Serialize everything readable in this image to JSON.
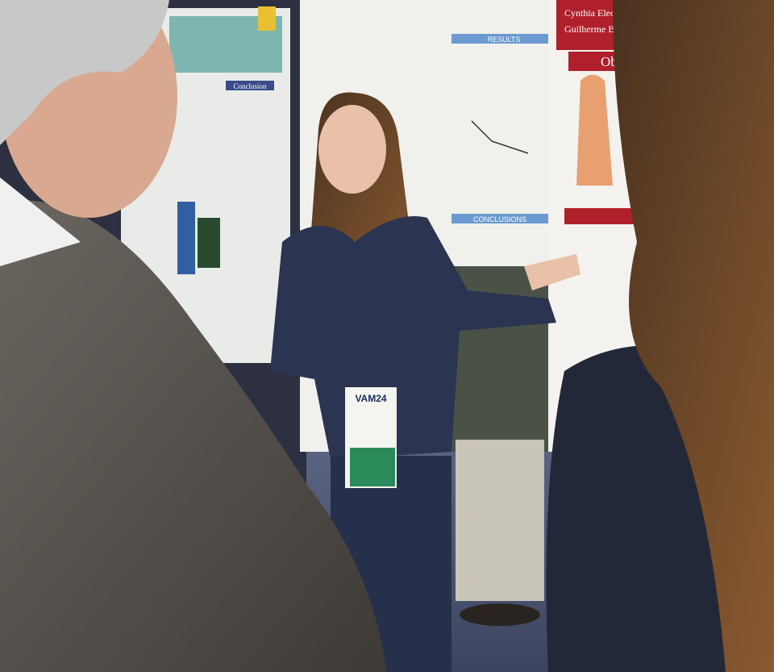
{
  "scene": {
    "posters": {
      "left": {
        "heading_1": "Conclusion"
      },
      "center": {
        "section_1": "RESULTS",
        "section_2": "CONCLUSIONS"
      },
      "right": {
        "authors_1": "Cynthia Eleonora de Mesquita, Brasiana Ang",
        "authors_2": "Guilherme Barbosa Baumgardt Lima, Bernard",
        "heading": "Objective"
      }
    },
    "badge": {
      "event": "VAM24"
    }
  }
}
